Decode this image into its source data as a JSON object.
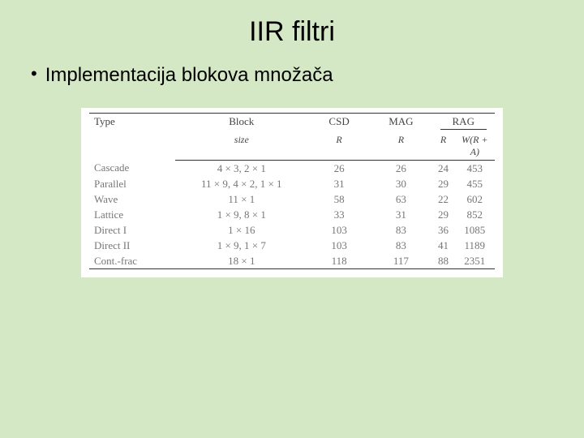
{
  "slide": {
    "title": "IIR filtri",
    "bullet": "Implementacija blokova množača",
    "background_color": "#d5e8c5"
  },
  "table": {
    "background_color": "#ffffff",
    "border_color": "#333333",
    "header": {
      "type": "Type",
      "block": "Block",
      "block_sub": "size",
      "csd": "CSD",
      "csd_sub": "R",
      "mag": "MAG",
      "mag_sub": "R",
      "rag": "RAG",
      "rag_r": "R",
      "rag_w": "W(R + A)"
    },
    "rows": [
      {
        "type": "Cascade",
        "block": "4 × 3, 2 × 1",
        "csd": "26",
        "mag": "26",
        "rag_r": "24",
        "rag_w": "453"
      },
      {
        "type": "Parallel",
        "block": "11 × 9, 4 × 2, 1 × 1",
        "csd": "31",
        "mag": "30",
        "rag_r": "29",
        "rag_w": "455"
      },
      {
        "type": "Wave",
        "block": "11 × 1",
        "csd": "58",
        "mag": "63",
        "rag_r": "22",
        "rag_w": "602"
      },
      {
        "type": "Lattice",
        "block": "1 × 9, 8 × 1",
        "csd": "33",
        "mag": "31",
        "rag_r": "29",
        "rag_w": "852"
      },
      {
        "type": "Direct I",
        "block": "1 × 16",
        "csd": "103",
        "mag": "83",
        "rag_r": "36",
        "rag_w": "1085"
      },
      {
        "type": "Direct II",
        "block": "1 × 9, 1 × 7",
        "csd": "103",
        "mag": "83",
        "rag_r": "41",
        "rag_w": "1189"
      },
      {
        "type": "Cont.-frac",
        "block": "18 × 1",
        "csd": "118",
        "mag": "117",
        "rag_r": "88",
        "rag_w": "2351"
      }
    ]
  }
}
